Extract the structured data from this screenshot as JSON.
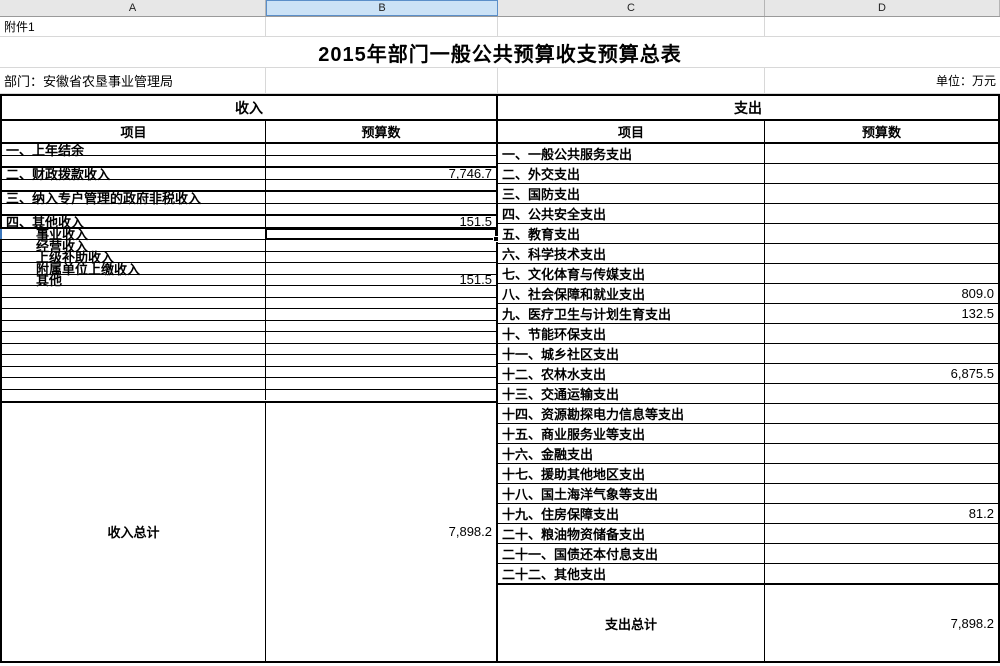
{
  "app": {
    "type": "spreadsheet-grid"
  },
  "columns": [
    {
      "label": "A",
      "selected": false
    },
    {
      "label": "B",
      "selected": true
    },
    {
      "label": "C",
      "selected": false
    },
    {
      "label": "D",
      "selected": false
    }
  ],
  "attachment_note": "附件1",
  "title": "2015年部门一般公共预算收支预算总表",
  "department": "部门：安徽省农垦事业管理局",
  "unit": "单位：万元",
  "income": {
    "header": "收入",
    "item_col": "项目",
    "budget_col": "预算数",
    "rows": [
      {
        "label": "一、上年结余",
        "value": "",
        "top": "med"
      },
      {
        "label": "",
        "value": "",
        "top": "thin"
      },
      {
        "label": "二、财政拨款收入",
        "value": "7,746.7",
        "top": "med"
      },
      {
        "label": "",
        "value": "",
        "top": "thin"
      },
      {
        "label": "三、纳入专户管理的政府非税收入",
        "value": "",
        "top": "med"
      },
      {
        "label": "",
        "value": "",
        "top": "thin"
      },
      {
        "label": "四、其他收入",
        "value": "151.5",
        "top": "med"
      },
      {
        "label": "事业收入",
        "value": "",
        "top": "med",
        "indent": true,
        "selected": true
      },
      {
        "label": "经营收入",
        "value": "",
        "top": "thin",
        "indent": true
      },
      {
        "label": "上级补助收入",
        "value": "",
        "top": "thin",
        "indent": true
      },
      {
        "label": "附属单位上缴收入",
        "value": "",
        "top": "thin",
        "indent": true
      },
      {
        "label": "其他",
        "value": "151.5",
        "top": "thin",
        "indent": true
      },
      {
        "label": "",
        "value": "",
        "top": "thin"
      },
      {
        "label": "",
        "value": "",
        "top": "thin"
      },
      {
        "label": "",
        "value": "",
        "top": "thin"
      },
      {
        "label": "",
        "value": "",
        "top": "thin"
      },
      {
        "label": "",
        "value": "",
        "top": "thin"
      },
      {
        "label": "",
        "value": "",
        "top": "thin"
      },
      {
        "label": "",
        "value": "",
        "top": "thin"
      },
      {
        "label": "",
        "value": "",
        "top": "thin"
      },
      {
        "label": "",
        "value": "",
        "top": "thin"
      },
      {
        "label": "",
        "value": "",
        "top": "thin"
      }
    ],
    "total_label": "收入总计",
    "total_value": "7,898.2"
  },
  "expenditure": {
    "header": "支出",
    "item_col": "项目",
    "budget_col": "预算数",
    "rows": [
      {
        "label": "一、一般公共服务支出",
        "value": "",
        "top": "med"
      },
      {
        "label": "二、外交支出",
        "value": "",
        "top": "thin"
      },
      {
        "label": "三、国防支出",
        "value": "",
        "top": "thin"
      },
      {
        "label": "四、公共安全支出",
        "value": "",
        "top": "thin"
      },
      {
        "label": "五、教育支出",
        "value": "",
        "top": "thin"
      },
      {
        "label": "六、科学技术支出",
        "value": "",
        "top": "thin"
      },
      {
        "label": "七、文化体育与传媒支出",
        "value": "",
        "top": "thin"
      },
      {
        "label": "八、社会保障和就业支出",
        "value": "809.0",
        "top": "thin"
      },
      {
        "label": "九、医疗卫生与计划生育支出",
        "value": "132.5",
        "top": "thin"
      },
      {
        "label": "十、节能环保支出",
        "value": "",
        "top": "thin"
      },
      {
        "label": "十一、城乡社区支出",
        "value": "",
        "top": "thin"
      },
      {
        "label": "十二、农林水支出",
        "value": "6,875.5",
        "top": "thin"
      },
      {
        "label": "十三、交通运输支出",
        "value": "",
        "top": "thin"
      },
      {
        "label": "十四、资源勘探电力信息等支出",
        "value": "",
        "top": "thin"
      },
      {
        "label": "十五、商业服务业等支出",
        "value": "",
        "top": "thin"
      },
      {
        "label": "十六、金融支出",
        "value": "",
        "top": "thin"
      },
      {
        "label": "十七、援助其他地区支出",
        "value": "",
        "top": "thin"
      },
      {
        "label": "十八、国土海洋气象等支出",
        "value": "",
        "top": "thin"
      },
      {
        "label": "十九、住房保障支出",
        "value": "81.2",
        "top": "thin"
      },
      {
        "label": "二十、粮油物资储备支出",
        "value": "",
        "top": "thin"
      },
      {
        "label": "二十一、国债还本付息支出",
        "value": "",
        "top": "thin"
      },
      {
        "label": "二十二、其他支出",
        "value": "",
        "top": "thin"
      }
    ],
    "total_label": "支出总计",
    "total_value": "7,898.2"
  },
  "colors": {
    "selected_column_fill": "#cbe2f6",
    "selected_column_border": "#5b8fc9",
    "header_strip_bg": "#e7e7e7",
    "table_border": "#000000",
    "faint_gridline": "#d8d8d8",
    "row_selection_accent": "#3b76bb"
  }
}
